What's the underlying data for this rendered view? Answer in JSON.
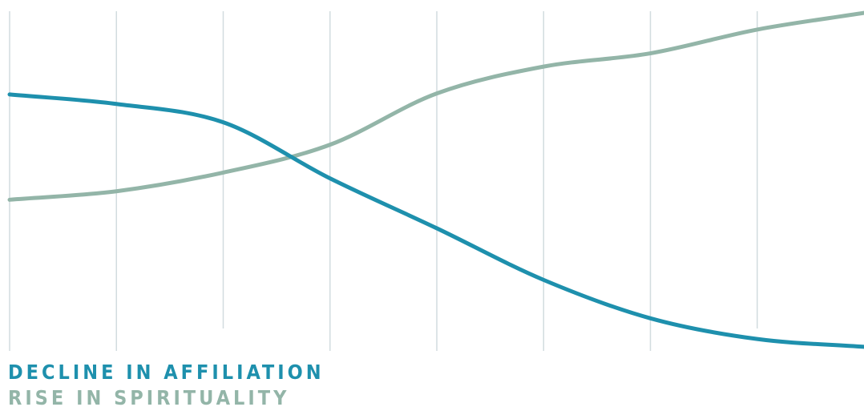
{
  "colors": {
    "affiliation": "#1e90ad",
    "spirituality": "#93b5a8",
    "grid": "#d2dcdf"
  },
  "legend": {
    "affiliation_label": "DECLINE IN AFFILIATION",
    "spirituality_label": "RISE IN SPIRITUALITY"
  },
  "chart_data": {
    "type": "line",
    "title": "",
    "xlabel": "",
    "ylabel": "",
    "axes_labeled": false,
    "grid": "vertical",
    "x_intervals": 8,
    "legend_position": "bottom-left",
    "ylim": [
      0,
      100
    ],
    "x": [
      0,
      1,
      2,
      3,
      4,
      5,
      6,
      7,
      8
    ],
    "series": [
      {
        "name": "DECLINE IN AFFILIATION",
        "color_key": "affiliation",
        "values": [
          75.5,
          72.7,
          67.3,
          50.8,
          36.1,
          20.9,
          9.6,
          3.5,
          1.2
        ]
      },
      {
        "name": "RISE IN SPIRITUALITY",
        "color_key": "spirituality",
        "values": [
          44.5,
          47.0,
          52.5,
          60.7,
          75.8,
          83.7,
          87.6,
          94.6,
          99.5
        ]
      }
    ]
  }
}
